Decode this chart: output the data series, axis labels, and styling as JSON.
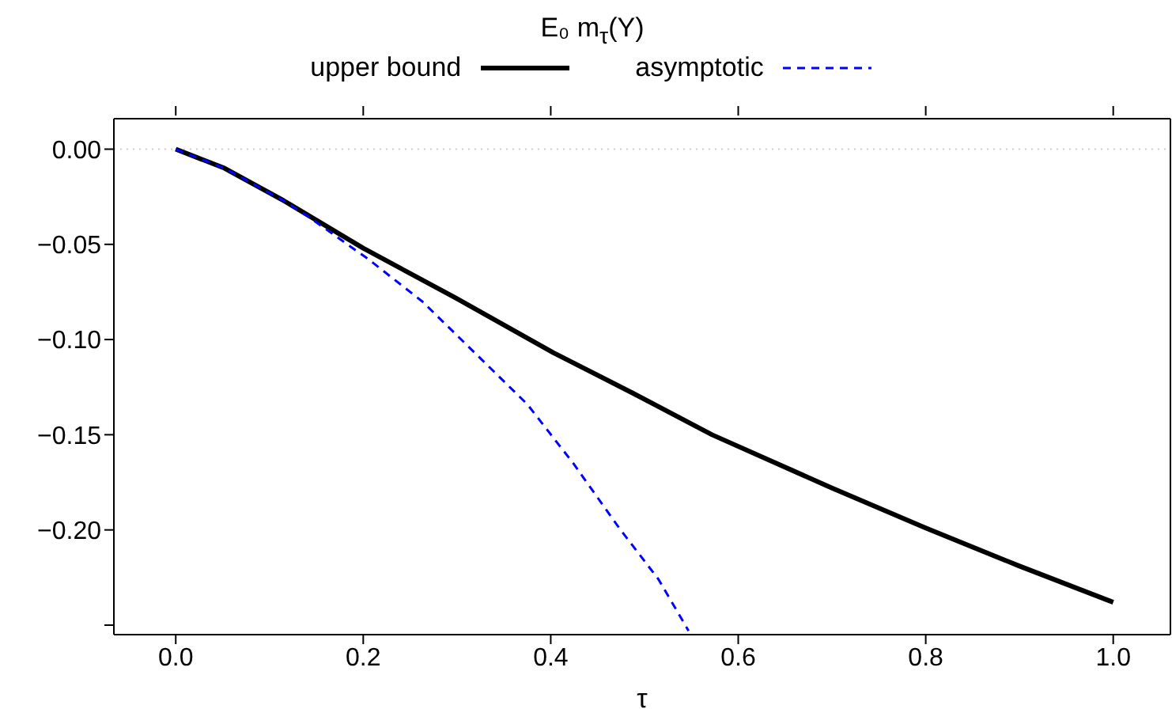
{
  "chart_data": {
    "type": "line",
    "title": "E₀ m$_{τ}$(Y)",
    "xlabel": "τ",
    "legend": "top",
    "grid": false,
    "marker": "none",
    "xlim": [
      -0.066,
      1.061
    ],
    "xticks": [
      {
        "value": 0,
        "label": "0.0"
      },
      0.2,
      0.4,
      0.6,
      0.8,
      {
        "value": 1,
        "label": "1.0"
      }
    ],
    "ylim": [
      -0.255,
      0.016
    ],
    "yticks": [
      {
        "value": 0,
        "label": "0.00"
      },
      {
        "value": -0.05,
        "label": "−0.05"
      },
      {
        "value": -0.1,
        "label": "−0.10"
      },
      {
        "value": -0.15,
        "label": "−0.15"
      },
      {
        "value": -0.2,
        "label": "−0.20"
      },
      {
        "value": -0.25,
        "label": null
      }
    ],
    "ref_lines": [
      {
        "axis": "y",
        "value": 0,
        "color": "#cccccc",
        "line_style": "dotted"
      }
    ],
    "series": [
      {
        "name": "upper bound",
        "color": "#000000",
        "line_style": "solid",
        "x": [
          0,
          0.052,
          0.115,
          0.2,
          0.298,
          0.403,
          0.487,
          0.572,
          0.7,
          0.8,
          0.9,
          1.0
        ],
        "values": [
          0,
          -0.01,
          -0.027,
          -0.052,
          -0.078,
          -0.107,
          -0.128,
          -0.15,
          -0.178,
          -0.199,
          -0.219,
          -0.238
        ]
      },
      {
        "name": "asymptotic",
        "color": "#0000ff",
        "line_style": "dashed",
        "x": [
          0,
          0.052,
          0.115,
          0.143,
          0.206,
          0.263,
          0.319,
          0.375,
          0.424,
          0.473,
          0.515,
          0.547
        ],
        "values": [
          0,
          -0.01,
          -0.027,
          -0.036,
          -0.058,
          -0.08,
          -0.107,
          -0.134,
          -0.165,
          -0.199,
          -0.226,
          -0.253
        ]
      }
    ]
  }
}
